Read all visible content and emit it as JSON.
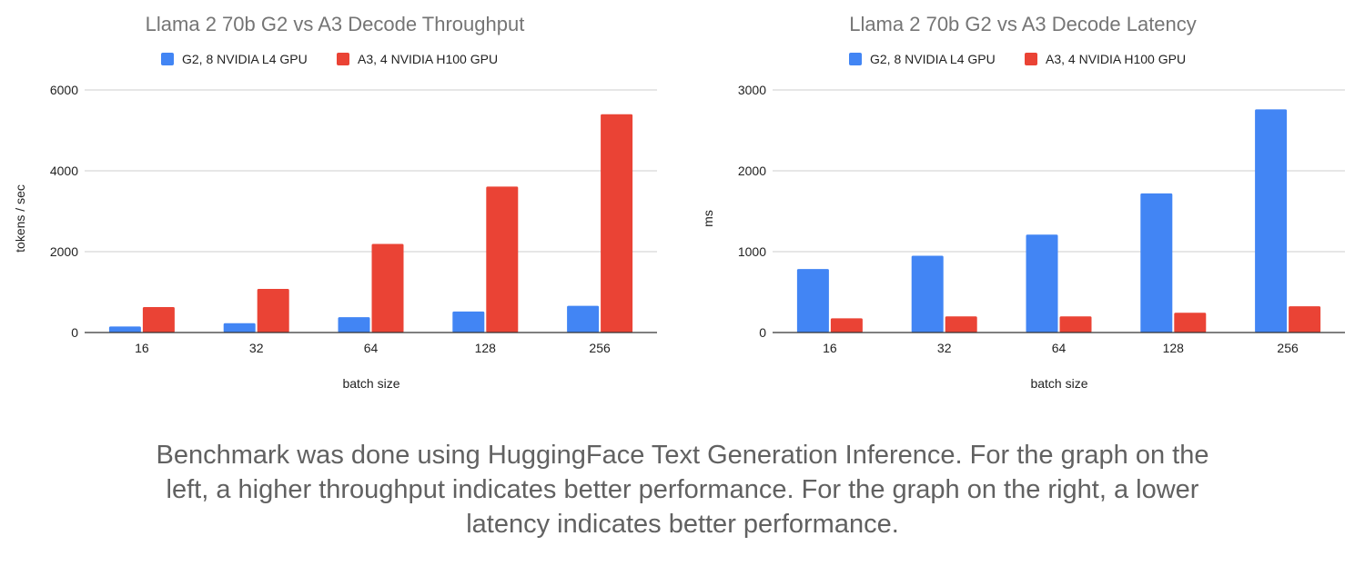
{
  "chart_data": [
    {
      "type": "bar",
      "title": "Llama 2 70b G2 vs A3 Decode Throughput",
      "xlabel": "batch size",
      "ylabel": "tokens / sec",
      "categories": [
        "16",
        "32",
        "64",
        "128",
        "256"
      ],
      "ylim": [
        0,
        6000
      ],
      "yticks": [
        0,
        2000,
        4000,
        6000
      ],
      "grid": true,
      "legend_position": "top",
      "series": [
        {
          "name": "G2, 8 NVIDIA L4 GPU",
          "color": "#4285f4",
          "values": [
            150,
            230,
            380,
            520,
            660
          ]
        },
        {
          "name": "A3, 4 NVIDIA H100 GPU",
          "color": "#ea4335",
          "values": [
            630,
            1080,
            2190,
            3610,
            5400
          ]
        }
      ]
    },
    {
      "type": "bar",
      "title": "Llama 2 70b G2 vs A3 Decode Latency",
      "xlabel": "batch size",
      "ylabel": "ms",
      "categories": [
        "16",
        "32",
        "64",
        "128",
        "256"
      ],
      "ylim": [
        0,
        3000
      ],
      "yticks": [
        0,
        1000,
        2000,
        3000
      ],
      "grid": true,
      "legend_position": "top",
      "series": [
        {
          "name": "G2, 8 NVIDIA L4 GPU",
          "color": "#4285f4",
          "values": [
            785,
            950,
            1210,
            1720,
            2760
          ]
        },
        {
          "name": "A3, 4 NVIDIA H100 GPU",
          "color": "#ea4335",
          "values": [
            175,
            200,
            200,
            245,
            325
          ]
        }
      ]
    }
  ],
  "footnote": "Benchmark was done using HuggingFace Text Generation Inference. For the graph on the left, a higher throughput indicates better performance. For the graph on the right, a lower latency indicates better performance."
}
